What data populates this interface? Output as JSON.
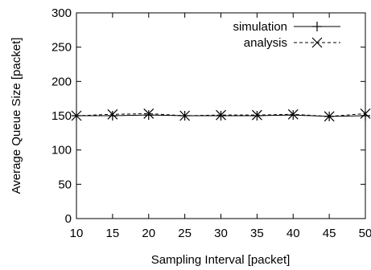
{
  "chart_data": {
    "type": "line",
    "title": "",
    "xlabel": "Sampling Interval [packet]",
    "ylabel": "Average Queue Size [packet]",
    "xlim": [
      10,
      50
    ],
    "ylim": [
      0,
      300
    ],
    "xticks": [
      "10",
      "15",
      "20",
      "25",
      "30",
      "35",
      "40",
      "45",
      "50"
    ],
    "yticks": [
      "0",
      "50",
      "100",
      "150",
      "200",
      "250",
      "300"
    ],
    "x": [
      10,
      15,
      20,
      25,
      30,
      35,
      40,
      45,
      50
    ],
    "grid": false,
    "legend_position": "top-right",
    "series": [
      {
        "name": "simulation",
        "line_style": "solid",
        "marker": "plus",
        "values": [
          150,
          150,
          151,
          150,
          150,
          150,
          151,
          149,
          150
        ]
      },
      {
        "name": "analysis",
        "line_style": "dashed",
        "marker": "x",
        "values": [
          150,
          152,
          153,
          150,
          151,
          151,
          152,
          149,
          153
        ]
      }
    ]
  }
}
